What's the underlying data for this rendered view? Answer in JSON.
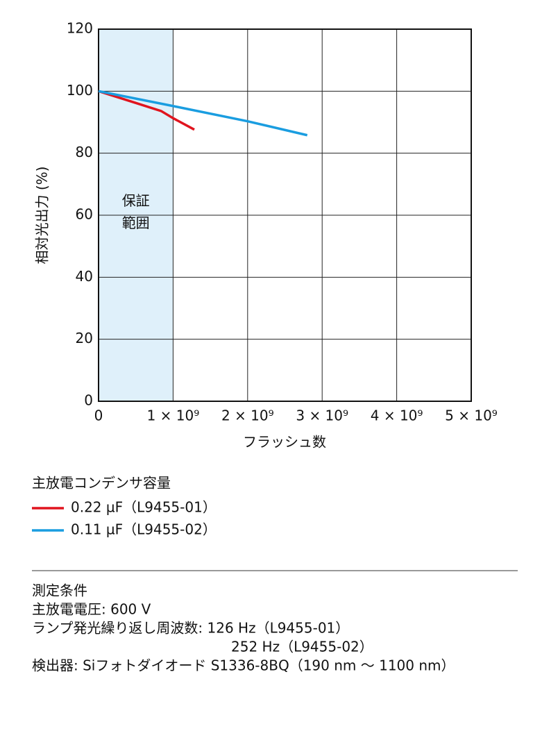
{
  "chart_data": {
    "type": "line",
    "ylabel": "相対光出力 (%)",
    "xlabel": "フラッシュ数",
    "xlim": [
      0,
      5000000000
    ],
    "ylim": [
      0,
      120
    ],
    "xticks": [
      0,
      {
        "value": 1000000000,
        "label": "1 × 10⁹"
      },
      {
        "value": 2000000000,
        "label": "2 × 10⁹"
      },
      {
        "value": 3000000000,
        "label": "3 × 10⁹"
      },
      {
        "value": 4000000000,
        "label": "4 × 10⁹"
      },
      {
        "value": 5000000000,
        "label": "5 × 10⁹"
      }
    ],
    "yticks": [
      0,
      20,
      40,
      60,
      80,
      100,
      120
    ],
    "grid": true,
    "shaded_range": {
      "x": [
        0,
        1000000000
      ],
      "label": "保証\n範囲",
      "color": "#dff0fa"
    },
    "legend_title": "主放電コンデンサ容量",
    "series": [
      {
        "name": "0.22 µF（L9455-01）",
        "color": "#e0141e",
        "x": [
          0,
          500000000,
          840000000,
          1000000000,
          1285000000
        ],
        "values": [
          100,
          96.2,
          93.6,
          91.3,
          87.6
        ]
      },
      {
        "name": "0.11 µF（L9455-02）",
        "color": "#1a9de0",
        "x": [
          0,
          1000000000,
          2000000000,
          2800000000
        ],
        "values": [
          100,
          95.2,
          90.3,
          85.8
        ]
      }
    ]
  },
  "notes": {
    "title": "測定条件",
    "lines": [
      "主放電電圧: 600 V",
      "ランプ発光繰り返し周波数: 126 Hz（L9455-01）",
      "252 Hz（L9455-02）",
      "検出器: Siフォトダイオード S1336-8BQ（190 nm ～ 1100 nm）"
    ]
  }
}
